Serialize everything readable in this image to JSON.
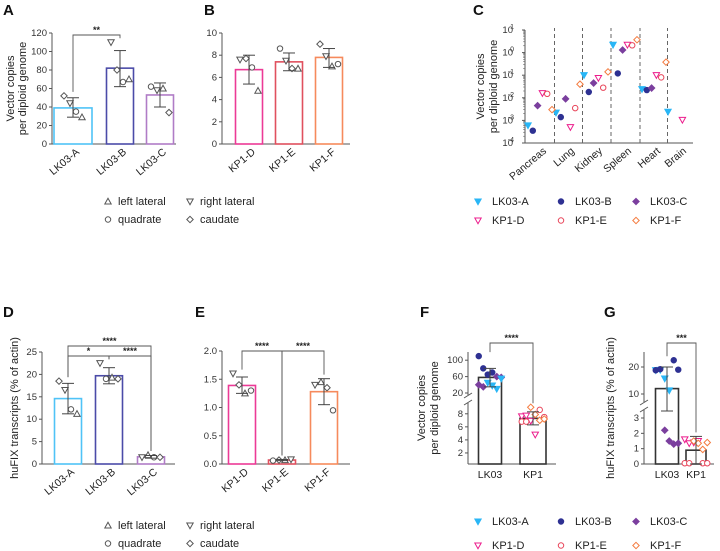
{
  "legends": {
    "liver_lobes": [
      {
        "label": "left lateral",
        "marker": "triangle-up"
      },
      {
        "label": "right lateral",
        "marker": "triangle-down"
      },
      {
        "label": "quadrate",
        "marker": "circle"
      },
      {
        "label": "caudate",
        "marker": "diamond"
      }
    ],
    "vectors": [
      {
        "label": "LK03-A",
        "marker": "triangle-down-filled",
        "color": "#29b6f6"
      },
      {
        "label": "LK03-B",
        "marker": "circle-filled",
        "color": "#2e3192"
      },
      {
        "label": "LK03-C",
        "marker": "diamond-filled",
        "color": "#7b3f9e"
      },
      {
        "label": "KP1-D",
        "marker": "triangle-down-open",
        "color": "#ec1c8c"
      },
      {
        "label": "KP1-E",
        "marker": "circle-open",
        "color": "#e8455a"
      },
      {
        "label": "KP1-F",
        "marker": "diamond-open",
        "color": "#f47b3f"
      }
    ]
  },
  "chart_data": [
    {
      "panel": "A",
      "type": "bar",
      "ylabel": [
        "Vector copies",
        "per diploid genome"
      ],
      "ylim": [
        0,
        120
      ],
      "yticks": [
        "0",
        "20",
        "40",
        "60",
        "80",
        "100",
        "120"
      ],
      "categories": [
        "LK03-A",
        "LK03-B",
        "LK03-C"
      ],
      "bar_colors": [
        "#4fc3f7",
        "#4b4ba8",
        "#b07cc6"
      ],
      "values": [
        39,
        82,
        53
      ],
      "error": [
        [
          29,
          50
        ],
        [
          62,
          101
        ],
        [
          40,
          66
        ]
      ],
      "points": [
        [
          {
            "lobe": "caudate",
            "v": 52
          },
          {
            "lobe": "right lateral",
            "v": 44
          },
          {
            "lobe": "quadrate",
            "v": 35
          },
          {
            "lobe": "left lateral",
            "v": 29
          }
        ],
        [
          {
            "lobe": "right lateral",
            "v": 110
          },
          {
            "lobe": "caudate",
            "v": 80
          },
          {
            "lobe": "quadrate",
            "v": 67
          },
          {
            "lobe": "left lateral",
            "v": 70
          }
        ],
        [
          {
            "lobe": "quadrate",
            "v": 62
          },
          {
            "lobe": "right lateral",
            "v": 58
          },
          {
            "lobe": "left lateral",
            "v": 60
          },
          {
            "lobe": "caudate",
            "v": 34
          }
        ]
      ],
      "significance": [
        {
          "from": 0,
          "to": 1,
          "label": "**"
        }
      ]
    },
    {
      "panel": "B",
      "type": "bar",
      "ylim": [
        0,
        10
      ],
      "yticks": [
        "0",
        "2",
        "4",
        "6",
        "8",
        "10"
      ],
      "categories": [
        "KP1-D",
        "KP1-E",
        "KP1-F"
      ],
      "bar_colors": [
        "#ec3a96",
        "#e0505e",
        "#f68a5c"
      ],
      "values": [
        6.7,
        7.4,
        7.8
      ],
      "error": [
        [
          5.4,
          8.0
        ],
        [
          6.6,
          8.2
        ],
        [
          6.9,
          8.6
        ]
      ],
      "points": [
        [
          {
            "lobe": "right lateral",
            "v": 7.6
          },
          {
            "lobe": "caudate",
            "v": 7.7
          },
          {
            "lobe": "quadrate",
            "v": 6.9
          },
          {
            "lobe": "left lateral",
            "v": 4.8
          }
        ],
        [
          {
            "lobe": "quadrate",
            "v": 8.6
          },
          {
            "lobe": "right lateral",
            "v": 7.5
          },
          {
            "lobe": "caudate",
            "v": 6.8
          },
          {
            "lobe": "left lateral",
            "v": 6.8
          }
        ],
        [
          {
            "lobe": "caudate",
            "v": 9.0
          },
          {
            "lobe": "right lateral",
            "v": 7.9
          },
          {
            "lobe": "left lateral",
            "v": 7.0
          },
          {
            "lobe": "quadrate",
            "v": 7.2
          }
        ]
      ],
      "significance": []
    },
    {
      "panel": "C",
      "type": "scatter",
      "yscale": "log",
      "ylabel": [
        "Vector copies",
        "per diploid genome"
      ],
      "ylim_exponents": [
        -4,
        1
      ],
      "yticks": [
        "-4",
        "-3",
        "-2",
        "-1",
        "0",
        "1"
      ],
      "ytick_base": "10",
      "categories": [
        "Pancreas",
        "Lung",
        "Kidney",
        "Spleen",
        "Heart",
        "Brain"
      ],
      "series": [
        {
          "name": "LK03-A",
          "values": [
            0.0006,
            0.0022,
            0.1,
            2.2,
            0.024,
            0.0024
          ]
        },
        {
          "name": "LK03-B",
          "values": [
            0.00035,
            0.0014,
            0.018,
            0.12,
            0.022,
            null
          ]
        },
        {
          "name": "LK03-C",
          "values": [
            0.0045,
            0.009,
            0.045,
            1.3,
            0.027,
            null
          ]
        },
        {
          "name": "KP1-D",
          "values": [
            0.016,
            0.0005,
            0.075,
            2.2,
            0.1,
            0.00105
          ]
        },
        {
          "name": "KP1-E",
          "values": [
            0.015,
            0.0035,
            0.028,
            2.1,
            0.08,
            null
          ]
        },
        {
          "name": "KP1-F",
          "values": [
            0.003,
            0.04,
            0.14,
            3.7,
            0.38,
            null
          ]
        }
      ]
    },
    {
      "panel": "D",
      "type": "bar",
      "ylabel": [
        "huFIX transcripts (% of actin)"
      ],
      "ylim": [
        0,
        25
      ],
      "yticks": [
        "0",
        "5",
        "10",
        "15",
        "20",
        "25"
      ],
      "categories": [
        "LK03-A",
        "LK03-B",
        "LK03-C"
      ],
      "bar_colors": [
        "#4fc3f7",
        "#4b4ba8",
        "#b07cc6"
      ],
      "values": [
        14.6,
        19.7,
        1.6
      ],
      "error": [
        [
          11.2,
          18.0
        ],
        [
          17.9,
          21.5
        ],
        [
          1.3,
          1.9
        ]
      ],
      "points": [
        [
          {
            "lobe": "caudate",
            "v": 18.5
          },
          {
            "lobe": "right lateral",
            "v": 16.5
          },
          {
            "lobe": "quadrate",
            "v": 12.2
          },
          {
            "lobe": "left lateral",
            "v": 11.2
          }
        ],
        [
          {
            "lobe": "right lateral",
            "v": 22.5
          },
          {
            "lobe": "quadrate",
            "v": 19.0
          },
          {
            "lobe": "left lateral",
            "v": 19.3
          },
          {
            "lobe": "caudate",
            "v": 19.0
          }
        ],
        [
          {
            "lobe": "right lateral",
            "v": 1.5
          },
          {
            "lobe": "left lateral",
            "v": 2.0
          },
          {
            "lobe": "quadrate",
            "v": 1.5
          },
          {
            "lobe": "caudate",
            "v": 1.5
          }
        ]
      ],
      "significance": [
        {
          "from": 0,
          "to": 2,
          "label": "****",
          "level": 2
        },
        {
          "from": 0,
          "to": 1,
          "label": "*",
          "level": 1
        },
        {
          "from": 1,
          "to": 2,
          "label": "****",
          "level": 1
        }
      ]
    },
    {
      "panel": "E",
      "type": "bar",
      "ylim": [
        0,
        2
      ],
      "yticks": [
        "0.0",
        "0.5",
        "1.0",
        "1.5",
        "2.0"
      ],
      "categories": [
        "KP1-D",
        "KP1-E",
        "KP1-F"
      ],
      "bar_colors": [
        "#ec3a96",
        "#e0505e",
        "#f68a5c"
      ],
      "values": [
        1.39,
        0.07,
        1.28
      ],
      "error": [
        [
          1.25,
          1.54
        ],
        [
          0.06,
          0.08
        ],
        [
          1.05,
          1.51
        ]
      ],
      "points": [
        [
          {
            "lobe": "right lateral",
            "v": 1.6
          },
          {
            "lobe": "caudate",
            "v": 1.4
          },
          {
            "lobe": "left lateral",
            "v": 1.25
          },
          {
            "lobe": "quadrate",
            "v": 1.3
          }
        ],
        [
          {
            "lobe": "quadrate",
            "v": 0.06
          },
          {
            "lobe": "caudate",
            "v": 0.07
          },
          {
            "lobe": "left lateral",
            "v": 0.07
          },
          {
            "lobe": "right lateral",
            "v": 0.08
          }
        ],
        [
          {
            "lobe": "right lateral",
            "v": 1.4
          },
          {
            "lobe": "left lateral",
            "v": 1.45
          },
          {
            "lobe": "caudate",
            "v": 1.35
          },
          {
            "lobe": "quadrate",
            "v": 0.95
          }
        ]
      ],
      "significance": [
        {
          "from": 0,
          "to": 1,
          "label": "****",
          "level": 1
        },
        {
          "from": 1,
          "to": 2,
          "label": "****",
          "level": 1
        }
      ]
    },
    {
      "panel": "F",
      "type": "bar",
      "broken_axis": true,
      "ylabel": [
        "Vector copies",
        "per diploid genome"
      ],
      "yticks": [
        {
          "v": 2,
          "t": "2"
        },
        {
          "v": 4,
          "t": "4"
        },
        {
          "v": 6,
          "t": "6"
        },
        {
          "v": 8,
          "t": "8"
        },
        {
          "v": 20,
          "t": "20"
        },
        {
          "v": 60,
          "t": "60"
        },
        {
          "v": 100,
          "t": "100"
        }
      ],
      "categories": [
        "LK03",
        "KP1"
      ],
      "bar_colors": [
        "#333333",
        "#333333"
      ],
      "values": [
        58,
        7.3
      ],
      "error": [
        [
          35,
          80
        ],
        [
          6.3,
          8.3
        ]
      ],
      "points": [
        [
          {
            "s": "LK03-B",
            "v": 110
          },
          {
            "s": "LK03-B",
            "v": 80
          },
          {
            "s": "LK03-B",
            "v": 65
          },
          {
            "s": "LK03-B",
            "v": 70
          },
          {
            "s": "LK03-C",
            "v": 60
          },
          {
            "s": "LK03-C",
            "v": 58
          },
          {
            "s": "LK03-C",
            "v": 40
          },
          {
            "s": "LK03-C",
            "v": 35
          },
          {
            "s": "LK03-A",
            "v": 45
          },
          {
            "s": "LK03-A",
            "v": 38
          },
          {
            "s": "LK03-A",
            "v": 30
          },
          {
            "s": "LK03-A",
            "v": 55
          }
        ],
        [
          {
            "s": "KP1-D",
            "v": 7.6
          },
          {
            "s": "KP1-D",
            "v": 7.7
          },
          {
            "s": "KP1-D",
            "v": 6.9
          },
          {
            "s": "KP1-D",
            "v": 4.8
          },
          {
            "s": "KP1-E",
            "v": 8.6
          },
          {
            "s": "KP1-E",
            "v": 7.5
          },
          {
            "s": "KP1-E",
            "v": 6.8
          },
          {
            "s": "KP1-E",
            "v": 6.8
          },
          {
            "s": "KP1-F",
            "v": 9.0
          },
          {
            "s": "KP1-F",
            "v": 7.9
          },
          {
            "s": "KP1-F",
            "v": 7.0
          },
          {
            "s": "KP1-F",
            "v": 7.2
          }
        ]
      ],
      "significance": [
        {
          "from": 0,
          "to": 1,
          "label": "****",
          "level": 1
        }
      ]
    },
    {
      "panel": "G",
      "type": "bar",
      "broken_axis": true,
      "ylabel": [
        "huFIX transcripts (% of actin)"
      ],
      "yticks": [
        {
          "v": 0,
          "t": "0"
        },
        {
          "v": 1,
          "t": "1"
        },
        {
          "v": 2,
          "t": "2"
        },
        {
          "v": 3,
          "t": "3"
        },
        {
          "v": 10,
          "t": "10"
        },
        {
          "v": 20,
          "t": "20"
        }
      ],
      "categories": [
        "LK03",
        "KP1"
      ],
      "bar_colors": [
        "#333333",
        "#333333"
      ],
      "values": [
        12,
        0.9
      ],
      "error": [
        [
          3.7,
          20
        ],
        [
          0,
          1.8
        ]
      ],
      "points": [
        [
          {
            "s": "LK03-A",
            "v": 18.8
          },
          {
            "s": "LK03-A",
            "v": 18.9
          },
          {
            "s": "LK03-A",
            "v": 15.7
          },
          {
            "s": "LK03-A",
            "v": 11.3
          },
          {
            "s": "LK03-B",
            "v": 22.5
          },
          {
            "s": "LK03-B",
            "v": 19.0
          },
          {
            "s": "LK03-B",
            "v": 18.8
          },
          {
            "s": "LK03-B",
            "v": 19.2
          },
          {
            "s": "LK03-C",
            "v": 2.2
          },
          {
            "s": "LK03-C",
            "v": 1.5
          },
          {
            "s": "LK03-C",
            "v": 1.3
          },
          {
            "s": "LK03-C",
            "v": 1.35
          }
        ],
        [
          {
            "s": "KP1-D",
            "v": 1.6
          },
          {
            "s": "KP1-D",
            "v": 1.35
          },
          {
            "s": "KP1-D",
            "v": 1.4
          },
          {
            "s": "KP1-D",
            "v": 1.5
          },
          {
            "s": "KP1-E",
            "v": 0.05
          },
          {
            "s": "KP1-E",
            "v": 0.05
          },
          {
            "s": "KP1-E",
            "v": 0.05
          },
          {
            "s": "KP1-E",
            "v": 0.05
          },
          {
            "s": "KP1-F",
            "v": 1.5
          },
          {
            "s": "KP1-F",
            "v": 1.35
          },
          {
            "s": "KP1-F",
            "v": 0.95
          },
          {
            "s": "KP1-F",
            "v": 1.4
          }
        ]
      ],
      "significance": [
        {
          "from": 0,
          "to": 1,
          "label": "***",
          "level": 1
        }
      ]
    }
  ]
}
